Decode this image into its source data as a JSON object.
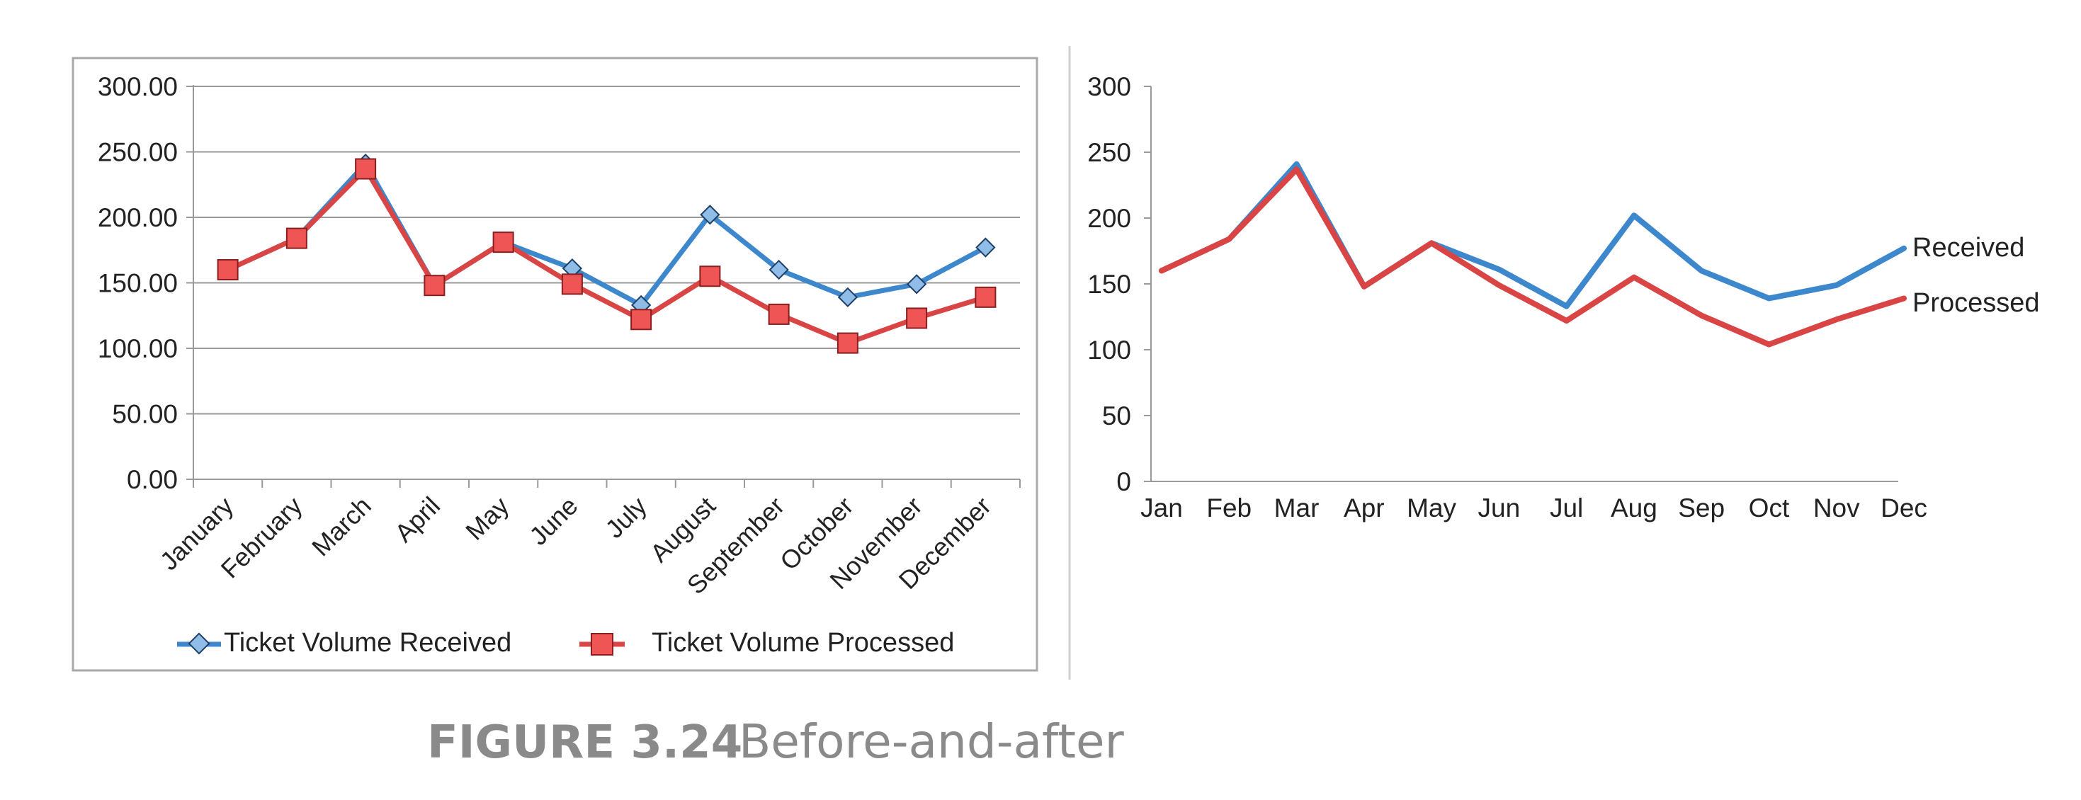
{
  "caption": {
    "number": "FIGURE 3.24",
    "text": "Before-and-after"
  },
  "colors": {
    "received": "#3d87cc",
    "processed": "#d94444",
    "processed_marker": "#ef5555",
    "received_marker": "#8fbde8",
    "grid": "#9a9a9a",
    "frame": "#a8a8a8",
    "divider": "#d0d0d0",
    "caption": "#8a8a8a"
  },
  "chart_data": [
    {
      "type": "line",
      "title": "",
      "xlabel": "",
      "ylabel": "",
      "ylim": [
        0,
        300
      ],
      "grid": true,
      "legend": "bottom",
      "y_ticks": [
        "0.00",
        "50.00",
        "100.00",
        "150.00",
        "200.00",
        "250.00",
        "300.00"
      ],
      "categories": [
        "January",
        "February",
        "March",
        "April",
        "May",
        "June",
        "July",
        "August",
        "September",
        "October",
        "November",
        "December"
      ],
      "series": [
        {
          "name": "Ticket Volume Received",
          "marker": "diamond",
          "values": [
            160,
            184,
            241,
            148,
            181,
            161,
            133,
            202,
            160,
            139,
            149,
            177
          ]
        },
        {
          "name": "Ticket Volume Processed",
          "marker": "square",
          "values": [
            160,
            184,
            237,
            148,
            181,
            149,
            122,
            155,
            126,
            104,
            123,
            139
          ]
        }
      ]
    },
    {
      "type": "line",
      "title": "",
      "xlabel": "",
      "ylabel": "",
      "ylim": [
        0,
        300
      ],
      "grid": false,
      "legend": "direct labels at right end of lines",
      "y_ticks": [
        "0",
        "50",
        "100",
        "150",
        "200",
        "250",
        "300"
      ],
      "categories": [
        "Jan",
        "Feb",
        "Mar",
        "Apr",
        "May",
        "Jun",
        "Jul",
        "Aug",
        "Sep",
        "Oct",
        "Nov",
        "Dec"
      ],
      "series": [
        {
          "name": "Received",
          "values": [
            160,
            184,
            241,
            148,
            181,
            161,
            133,
            202,
            160,
            139,
            149,
            177
          ]
        },
        {
          "name": "Processed",
          "values": [
            160,
            184,
            237,
            148,
            181,
            149,
            122,
            155,
            126,
            104,
            123,
            139
          ]
        }
      ]
    }
  ]
}
